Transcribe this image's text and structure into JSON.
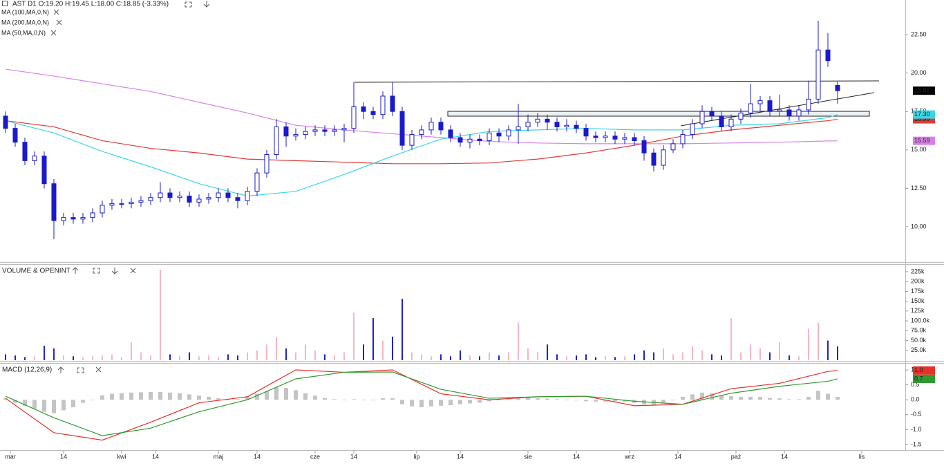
{
  "chart_data": [
    {
      "type": "candlestick",
      "title": "AST  D1  O:19.20  H:19.45  L:18.00  C:18.85  (-3.33%)",
      "x": [
        0,
        2,
        4,
        6,
        8,
        10,
        12,
        14,
        16,
        18,
        20,
        22,
        24,
        26,
        28,
        30,
        32,
        34,
        36,
        38,
        40,
        42,
        44,
        46,
        48,
        50,
        52,
        54,
        56,
        58,
        60,
        62,
        64,
        66,
        68,
        70,
        72,
        74,
        76,
        78,
        80,
        82,
        84,
        86,
        88,
        90,
        92,
        94,
        96,
        98,
        100,
        102,
        104,
        106,
        108,
        110,
        112,
        114,
        116,
        118,
        120,
        122,
        124,
        126,
        128,
        130,
        132,
        134,
        136,
        138,
        140,
        142,
        144,
        146,
        148,
        150,
        152,
        154,
        156,
        158,
        160,
        162,
        164,
        166,
        168,
        170,
        172
      ],
      "open": [
        17.2,
        16.4,
        15.5,
        14.3,
        14.6,
        12.8,
        10.4,
        10.6,
        10.5,
        10.6,
        10.9,
        11.4,
        11.5,
        11.5,
        11.6,
        11.7,
        11.9,
        12.2,
        11.9,
        12.0,
        11.6,
        11.8,
        11.9,
        12.2,
        11.9,
        11.7,
        12.3,
        13.5,
        14.7,
        16.5,
        15.9,
        16.0,
        16.2,
        16.3,
        16.2,
        16.3,
        16.4,
        17.8,
        17.5,
        17.3,
        18.5,
        17.5,
        15.3,
        16.0,
        16.3,
        16.8,
        16.3,
        15.8,
        15.5,
        15.7,
        15.6,
        16.1,
        15.9,
        16.3,
        16.5,
        16.8,
        17.0,
        16.8,
        16.5,
        16.6,
        16.4,
        15.9,
        15.8,
        15.9,
        15.7,
        15.8,
        15.6,
        14.8,
        14.0,
        15.0,
        15.4,
        16.0,
        16.7,
        17.5,
        17.2,
        16.5,
        17.0,
        17.4,
        18.0,
        18.2,
        17.5,
        17.6,
        17.2,
        17.6,
        18.3,
        21.5,
        19.2
      ],
      "high": [
        17.5,
        16.7,
        15.8,
        14.9,
        14.9,
        13.1,
        10.9,
        10.9,
        10.9,
        11.2,
        11.7,
        11.8,
        11.8,
        11.9,
        12.0,
        12.2,
        12.9,
        12.5,
        12.3,
        12.3,
        12.1,
        12.2,
        12.5,
        12.5,
        12.2,
        12.6,
        13.8,
        15.0,
        17.0,
        16.8,
        16.4,
        16.5,
        16.6,
        16.6,
        16.6,
        16.7,
        19.4,
        18.1,
        17.8,
        18.8,
        19.4,
        17.8,
        16.3,
        16.6,
        17.1,
        17.1,
        16.6,
        16.1,
        16.0,
        16.0,
        16.4,
        16.4,
        16.6,
        18.0,
        17.3,
        17.4,
        17.3,
        17.1,
        17.0,
        16.9,
        16.7,
        16.2,
        16.2,
        16.2,
        16.1,
        16.1,
        15.9,
        15.1,
        15.3,
        15.7,
        16.3,
        17.0,
        17.9,
        17.8,
        17.5,
        17.3,
        17.7,
        19.3,
        18.5,
        18.5,
        18.6,
        17.9,
        17.9,
        19.5,
        23.4,
        22.6,
        19.45
      ],
      "low": [
        16.1,
        15.2,
        14.0,
        14.0,
        12.5,
        9.2,
        10.1,
        10.2,
        10.2,
        10.3,
        10.6,
        11.1,
        11.2,
        11.2,
        11.3,
        11.4,
        11.6,
        11.6,
        11.6,
        11.3,
        11.3,
        11.5,
        11.6,
        11.6,
        11.2,
        11.4,
        12.0,
        13.2,
        14.4,
        15.2,
        15.6,
        15.7,
        15.9,
        15.9,
        15.9,
        15.5,
        16.1,
        17.0,
        17.0,
        17.0,
        17.2,
        15.0,
        15.0,
        15.7,
        16.0,
        16.0,
        15.5,
        15.2,
        15.1,
        15.3,
        15.3,
        15.5,
        15.6,
        15.4,
        16.2,
        16.5,
        16.3,
        16.2,
        16.2,
        16.1,
        15.6,
        15.5,
        15.5,
        15.4,
        15.4,
        15.3,
        14.3,
        13.6,
        13.7,
        14.8,
        15.1,
        15.7,
        16.4,
        16.9,
        16.2,
        16.2,
        16.7,
        17.1,
        17.5,
        17.2,
        17.2,
        16.9,
        16.9,
        17.3,
        18.0,
        20.4,
        18.0
      ],
      "close": [
        16.4,
        15.5,
        14.3,
        14.6,
        12.8,
        10.4,
        10.6,
        10.5,
        10.6,
        10.9,
        11.4,
        11.5,
        11.5,
        11.6,
        11.7,
        11.9,
        12.2,
        11.9,
        12.0,
        11.6,
        11.8,
        11.9,
        12.2,
        11.9,
        11.7,
        12.3,
        13.5,
        14.7,
        16.5,
        15.9,
        16.0,
        16.2,
        16.3,
        16.2,
        16.3,
        16.4,
        17.8,
        17.5,
        17.3,
        18.5,
        17.5,
        15.3,
        16.0,
        16.3,
        16.8,
        16.3,
        15.8,
        15.5,
        15.7,
        15.6,
        16.1,
        15.9,
        16.3,
        16.5,
        16.8,
        17.0,
        16.8,
        16.5,
        16.6,
        16.4,
        15.9,
        15.8,
        15.9,
        15.7,
        15.8,
        15.6,
        14.8,
        14.0,
        15.0,
        15.4,
        16.0,
        16.7,
        17.5,
        17.2,
        16.5,
        17.0,
        17.4,
        18.0,
        18.2,
        17.5,
        17.6,
        17.2,
        17.6,
        18.3,
        21.5,
        20.8,
        18.85
      ],
      "up_color": "#ffffff",
      "down_color": "#1a1acc",
      "edge_color": "#1a1acc",
      "last_box_color": "#000000",
      "xlim": [
        -1.14,
        186
      ],
      "xticks": [
        {
          "value": 1,
          "label": "mar"
        },
        {
          "value": 12,
          "label": "14"
        },
        {
          "value": 24,
          "label": "kwi"
        },
        {
          "value": 31,
          "label": "14"
        },
        {
          "value": 44,
          "label": "maj"
        },
        {
          "value": 52,
          "label": "14"
        },
        {
          "value": 64,
          "label": "cze"
        },
        {
          "value": 72,
          "label": "14"
        },
        {
          "value": 85,
          "label": "lip"
        },
        {
          "value": 94,
          "label": "14"
        },
        {
          "value": 108,
          "label": "sie"
        },
        {
          "value": 118,
          "label": "14"
        },
        {
          "value": 129,
          "label": "wrz"
        },
        {
          "value": 139,
          "label": "14"
        },
        {
          "value": 151,
          "label": "paź"
        },
        {
          "value": 161,
          "label": "14"
        },
        {
          "value": 177,
          "label": "lis"
        }
      ],
      "ylim": [
        7.75,
        24.75
      ],
      "yticks": [
        {
          "value": 10,
          "label": "10.00"
        },
        {
          "value": 12.5,
          "label": "12.50"
        },
        {
          "value": 15,
          "label": "15.00"
        },
        {
          "value": 17.5,
          "label": "17.50"
        },
        {
          "value": 20,
          "label": "20.00"
        },
        {
          "value": 22.5,
          "label": "22.50"
        }
      ],
      "series": [
        {
          "name": "MA (100,MA,0,N)",
          "color": "#e03a36",
          "x": [
            0,
            10,
            20,
            30,
            40,
            50,
            60,
            70,
            80,
            90,
            100,
            110,
            120,
            130,
            140,
            150,
            160,
            170,
            172
          ],
          "values": [
            16.9,
            16.5,
            15.6,
            15.1,
            14.8,
            14.4,
            14.3,
            14.2,
            14.1,
            14.1,
            14.15,
            14.4,
            14.8,
            15.3,
            15.9,
            16.3,
            16.6,
            16.9,
            16.99
          ]
        },
        {
          "name": "MA (200,MA,0,N)",
          "color": "#d880e8",
          "x": [
            0,
            10,
            20,
            30,
            40,
            50,
            60,
            70,
            80,
            90,
            100,
            110,
            120,
            130,
            140,
            150,
            160,
            170,
            172
          ],
          "values": [
            20.25,
            19.8,
            19.3,
            18.8,
            18.1,
            17.4,
            16.6,
            16.3,
            16.05,
            15.8,
            15.55,
            15.45,
            15.4,
            15.4,
            15.4,
            15.45,
            15.5,
            15.58,
            15.59
          ]
        },
        {
          "name": "MA (50,MA,0,N)",
          "color": "#3ad6e6",
          "x": [
            0,
            10,
            20,
            30,
            40,
            50,
            60,
            70,
            80,
            90,
            100,
            110,
            120,
            130,
            140,
            150,
            160,
            170,
            172
          ],
          "values": [
            16.9,
            16.1,
            14.9,
            13.9,
            12.8,
            12.0,
            12.3,
            13.4,
            14.6,
            15.7,
            16.2,
            16.3,
            16.4,
            16.3,
            16.3,
            16.6,
            16.7,
            17.1,
            17.3
          ],
          "last_label": "17.30"
        }
      ]
    },
    {
      "type": "bar",
      "title": "VOLUME & OPENINT",
      "values": [
        15000,
        12000,
        8000,
        10000,
        37000,
        30000,
        12000,
        10000,
        8000,
        10000,
        12000,
        15000,
        8000,
        45000,
        20000,
        12000,
        230000,
        15000,
        12000,
        20000,
        10000,
        12000,
        8000,
        15000,
        12000,
        20000,
        25000,
        40000,
        58000,
        30000,
        20000,
        40000,
        25000,
        15000,
        12000,
        20000,
        121000,
        40000,
        107000,
        50000,
        60000,
        156000,
        20000,
        15000,
        10000,
        15000,
        10000,
        25000,
        12000,
        10000,
        20000,
        12000,
        20000,
        95000,
        30000,
        20000,
        40000,
        15000,
        10000,
        12000,
        15000,
        8000,
        10000,
        8000,
        10000,
        15000,
        25000,
        20000,
        30000,
        15000,
        20000,
        35000,
        25000,
        15000,
        12000,
        107000,
        20000,
        40000,
        30000,
        20000,
        45000,
        12000,
        10000,
        80000,
        95000,
        50000,
        35000
      ],
      "up_color": "#f7b6c0",
      "down_color": "#2020cc",
      "ylim": [
        0,
        242500
      ],
      "yticks": [
        {
          "value": 25000,
          "label": "25.0k"
        },
        {
          "value": 50000,
          "label": "50.0k"
        },
        {
          "value": 75000,
          "label": "75.0k"
        },
        {
          "value": 100000,
          "label": "100.0k"
        },
        {
          "value": 125000,
          "label": "125k"
        },
        {
          "value": 150000,
          "label": "150k"
        },
        {
          "value": 175000,
          "label": "175k"
        },
        {
          "value": 200000,
          "label": "200k"
        },
        {
          "value": 225000,
          "label": "225k"
        }
      ]
    },
    {
      "type": "macd",
      "title": "MACD (12,26,9)",
      "histogram": [
        0.05,
        -0.1,
        -0.2,
        -0.3,
        -0.4,
        -0.45,
        -0.35,
        -0.25,
        -0.1,
        0.0,
        0.15,
        0.2,
        0.22,
        0.24,
        0.25,
        0.26,
        0.26,
        0.24,
        0.22,
        0.18,
        0.14,
        0.1,
        0.05,
        0.0,
        0.02,
        0.12,
        0.2,
        0.3,
        0.42,
        0.4,
        0.32,
        0.22,
        0.14,
        0.06,
        0.02,
        0.0,
        0.02,
        0.0,
        -0.02,
        0.05,
        0.05,
        -0.15,
        -0.22,
        -0.25,
        -0.22,
        -0.2,
        -0.18,
        -0.15,
        -0.12,
        -0.1,
        -0.05,
        -0.02,
        0.02,
        0.06,
        0.06,
        0.05,
        0.04,
        0.02,
        0.0,
        -0.02,
        -0.05,
        -0.06,
        -0.06,
        -0.05,
        -0.06,
        -0.1,
        -0.15,
        -0.18,
        -0.12,
        -0.02,
        0.1,
        0.18,
        0.24,
        0.22,
        0.14,
        0.12,
        0.1,
        0.1,
        0.1,
        0.06,
        0.05,
        0.02,
        0.02,
        0.1,
        0.3,
        0.2,
        0.1
      ],
      "hist_color": "#c4c4c4",
      "ylim": [
        -1.66,
        1.185
      ],
      "yticks": [
        {
          "value": -1.5,
          "label": "-1.5"
        },
        {
          "value": -1,
          "label": "-1.0"
        },
        {
          "value": -0.5,
          "label": "-0.5"
        },
        {
          "value": 0,
          "label": "0.0"
        },
        {
          "value": 0.5,
          "label": "0.5"
        },
        {
          "value": 1,
          "label": "1.0"
        }
      ],
      "series": [
        {
          "color": "#e8302a",
          "x": [
            0,
            10,
            20,
            30,
            40,
            50,
            60,
            70,
            80,
            90,
            100,
            110,
            120,
            130,
            140,
            150,
            160,
            170,
            172
          ],
          "values": [
            0.05,
            -1.1,
            -1.35,
            -0.75,
            -0.1,
            0.1,
            1.0,
            0.92,
            1.0,
            0.2,
            0.0,
            0.1,
            0.12,
            -0.2,
            -0.15,
            0.37,
            0.55,
            0.95,
            0.98
          ],
          "last_label": "1.0"
        },
        {
          "color": "#2f9a2f",
          "x": [
            0,
            10,
            20,
            30,
            40,
            50,
            60,
            70,
            80,
            90,
            100,
            110,
            120,
            130,
            140,
            150,
            160,
            170,
            172
          ],
          "values": [
            0.12,
            -0.6,
            -1.2,
            -0.95,
            -0.4,
            0.0,
            0.7,
            0.92,
            0.93,
            0.35,
            0.05,
            0.1,
            0.12,
            -0.05,
            -0.15,
            0.22,
            0.45,
            0.62,
            0.7
          ]
        }
      ]
    }
  ]
}
